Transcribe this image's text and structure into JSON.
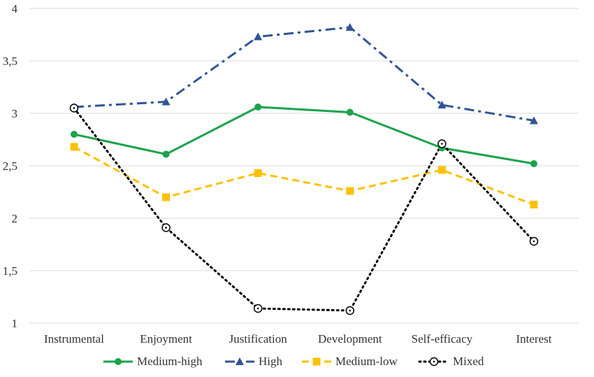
{
  "chart_data": {
    "type": "line",
    "categories": [
      "Instrumental",
      "Enjoyment",
      "Justification",
      "Development",
      "Self-efficacy",
      "Interest"
    ],
    "ylim": [
      1,
      4
    ],
    "yticks": [
      "1",
      "1,5",
      "2",
      "2,5",
      "3",
      "3,5",
      "4"
    ],
    "grid": true,
    "legend_position": "bottom",
    "series": [
      {
        "name": "Medium-high",
        "values": [
          2.8,
          2.61,
          3.06,
          3.01,
          2.67,
          2.52
        ],
        "color": "#1aa34a",
        "marker": "circle",
        "line": "solid"
      },
      {
        "name": "High",
        "values": [
          3.06,
          3.11,
          3.73,
          3.82,
          3.08,
          2.93
        ],
        "color": "#2f5597",
        "marker": "triangle",
        "line": "dash-dot"
      },
      {
        "name": "Medium-low",
        "values": [
          2.68,
          2.2,
          2.43,
          2.26,
          2.46,
          2.13
        ],
        "color": "#ffc000",
        "marker": "square",
        "line": "dashed"
      },
      {
        "name": "Mixed",
        "values": [
          3.05,
          1.91,
          1.14,
          1.12,
          2.71,
          1.78
        ],
        "color": "#000000",
        "marker": "open-circle-dot",
        "line": "dotted"
      }
    ]
  }
}
